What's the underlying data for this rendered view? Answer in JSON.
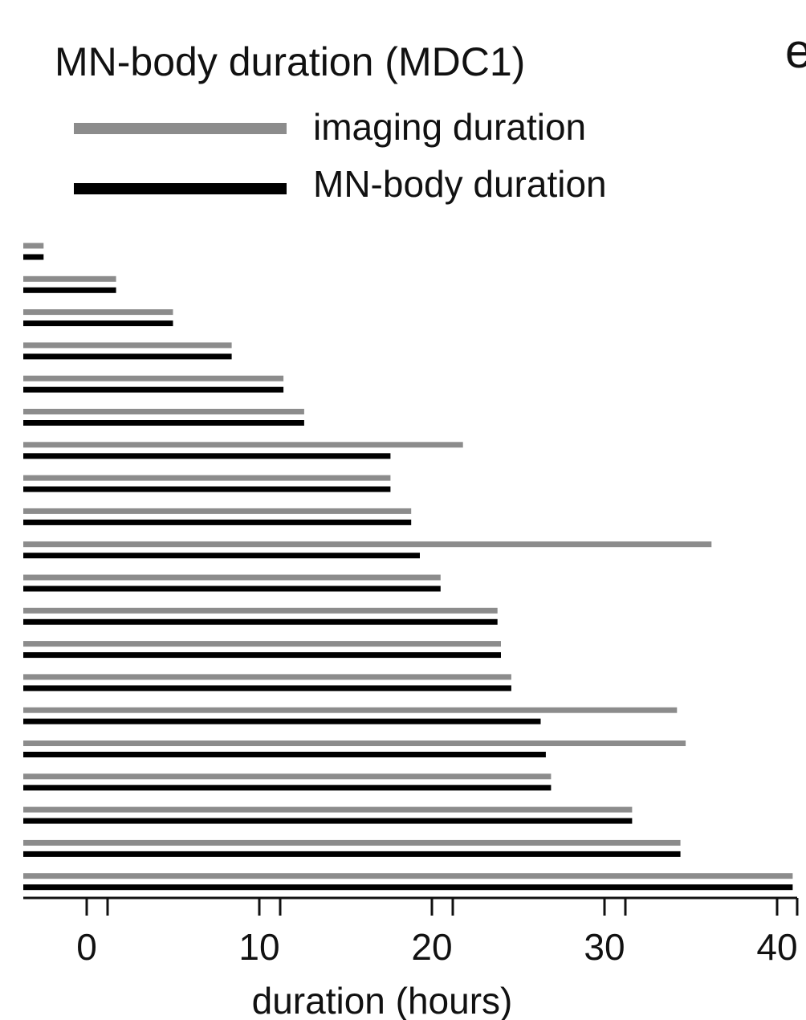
{
  "panel_letter": "e",
  "chart_data": {
    "type": "bar",
    "orientation": "horizontal",
    "title": "MN-body duration (MDC1)",
    "xlabel": "duration (hours)",
    "ylabel": "",
    "xlim": [
      -3.7,
      44.5
    ],
    "xticks": [
      0,
      10,
      20,
      30,
      40
    ],
    "xtick_labels": [
      "0",
      "10",
      "20",
      "30",
      "40"
    ],
    "grid": false,
    "legend_position": "top-left",
    "colors": {
      "imaging": "#8c8c8c",
      "mn_body": "#000000"
    },
    "series": [
      {
        "name": "imaging duration",
        "values": [
          -2.5,
          1.7,
          5.0,
          8.4,
          11.4,
          12.6,
          21.8,
          17.6,
          18.8,
          36.2,
          20.5,
          23.8,
          24.0,
          24.6,
          34.2,
          34.7,
          26.9,
          31.6,
          34.4,
          40.9
        ]
      },
      {
        "name": "MN-body duration",
        "values": [
          -2.5,
          1.7,
          5.0,
          8.4,
          11.4,
          12.6,
          17.6,
          17.6,
          18.8,
          19.3,
          20.5,
          23.8,
          24.0,
          24.6,
          26.3,
          26.6,
          26.9,
          31.6,
          34.4,
          40.9
        ]
      }
    ]
  }
}
